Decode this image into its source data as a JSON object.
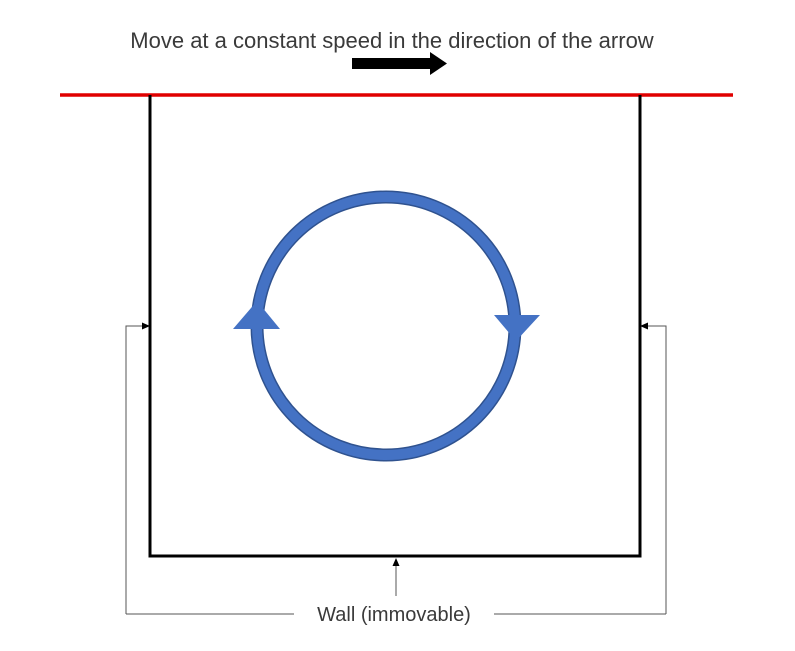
{
  "caption": "Move at a constant speed in the direction of the arrow",
  "wall_label": "Wall (immovable)",
  "colors": {
    "moving_lid": "#e00000",
    "circulation": "#4472c4",
    "circulation_edge": "#2f528f",
    "wall": "#000000",
    "leader": "#555555",
    "text": "#3a3a3a"
  },
  "icons": {
    "direction": "right-arrow-icon",
    "circulation": "clockwise-circular-arrow-icon",
    "pointer": "small-arrowhead-icon"
  }
}
